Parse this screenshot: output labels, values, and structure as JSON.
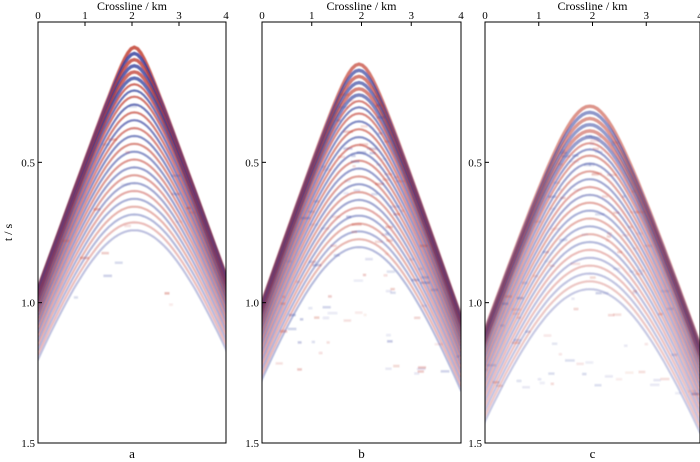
{
  "chart_data": [
    {
      "type": "heatmap",
      "panel_label": "a",
      "xlabel": "Crossline / km",
      "ylabel": "t / s",
      "xlim": [
        0,
        4
      ],
      "ylim": [
        1.5,
        0
      ],
      "xticks": [
        "0",
        "1",
        "2",
        "3",
        "4"
      ],
      "yticks": [
        "0.5",
        "1.0",
        "1.5"
      ],
      "colormap": [
        "#2b3a9a",
        "#ffffff",
        "#c0392b"
      ],
      "event": {
        "apex_x": 2.05,
        "apex_t": 0.09,
        "edge_t": 0.95,
        "dense_until_t": 0.55,
        "strength": 1.0
      }
    },
    {
      "type": "heatmap",
      "panel_label": "b",
      "xlabel": "Crossline / km",
      "ylabel": "",
      "xlim": [
        0,
        4
      ],
      "ylim": [
        1.5,
        0
      ],
      "xticks": [
        "0",
        "1",
        "2",
        "3",
        "4"
      ],
      "yticks": [
        "0.5",
        "1.0",
        "1.5"
      ],
      "colormap": [
        "#2b3a9a",
        "#ffffff",
        "#c0392b"
      ],
      "event": {
        "apex_x": 1.95,
        "apex_t": 0.15,
        "edge_t": 1.05,
        "dense_until_t": 0.75,
        "strength": 0.8
      }
    },
    {
      "type": "heatmap",
      "panel_label": "c",
      "xlabel": "Crossline / km",
      "ylabel": "",
      "xlim": [
        0,
        4
      ],
      "ylim": [
        1.5,
        0
      ],
      "xticks": [
        "0",
        "1",
        "2",
        "3",
        "4"
      ],
      "yticks": [
        "0.5",
        "1.0",
        "1.5"
      ],
      "colormap": [
        "#2b3a9a",
        "#ffffff",
        "#c0392b"
      ],
      "event": {
        "apex_x": 1.95,
        "apex_t": 0.3,
        "edge_t": 1.15,
        "dense_until_t": 0.85,
        "strength": 0.6
      }
    }
  ]
}
